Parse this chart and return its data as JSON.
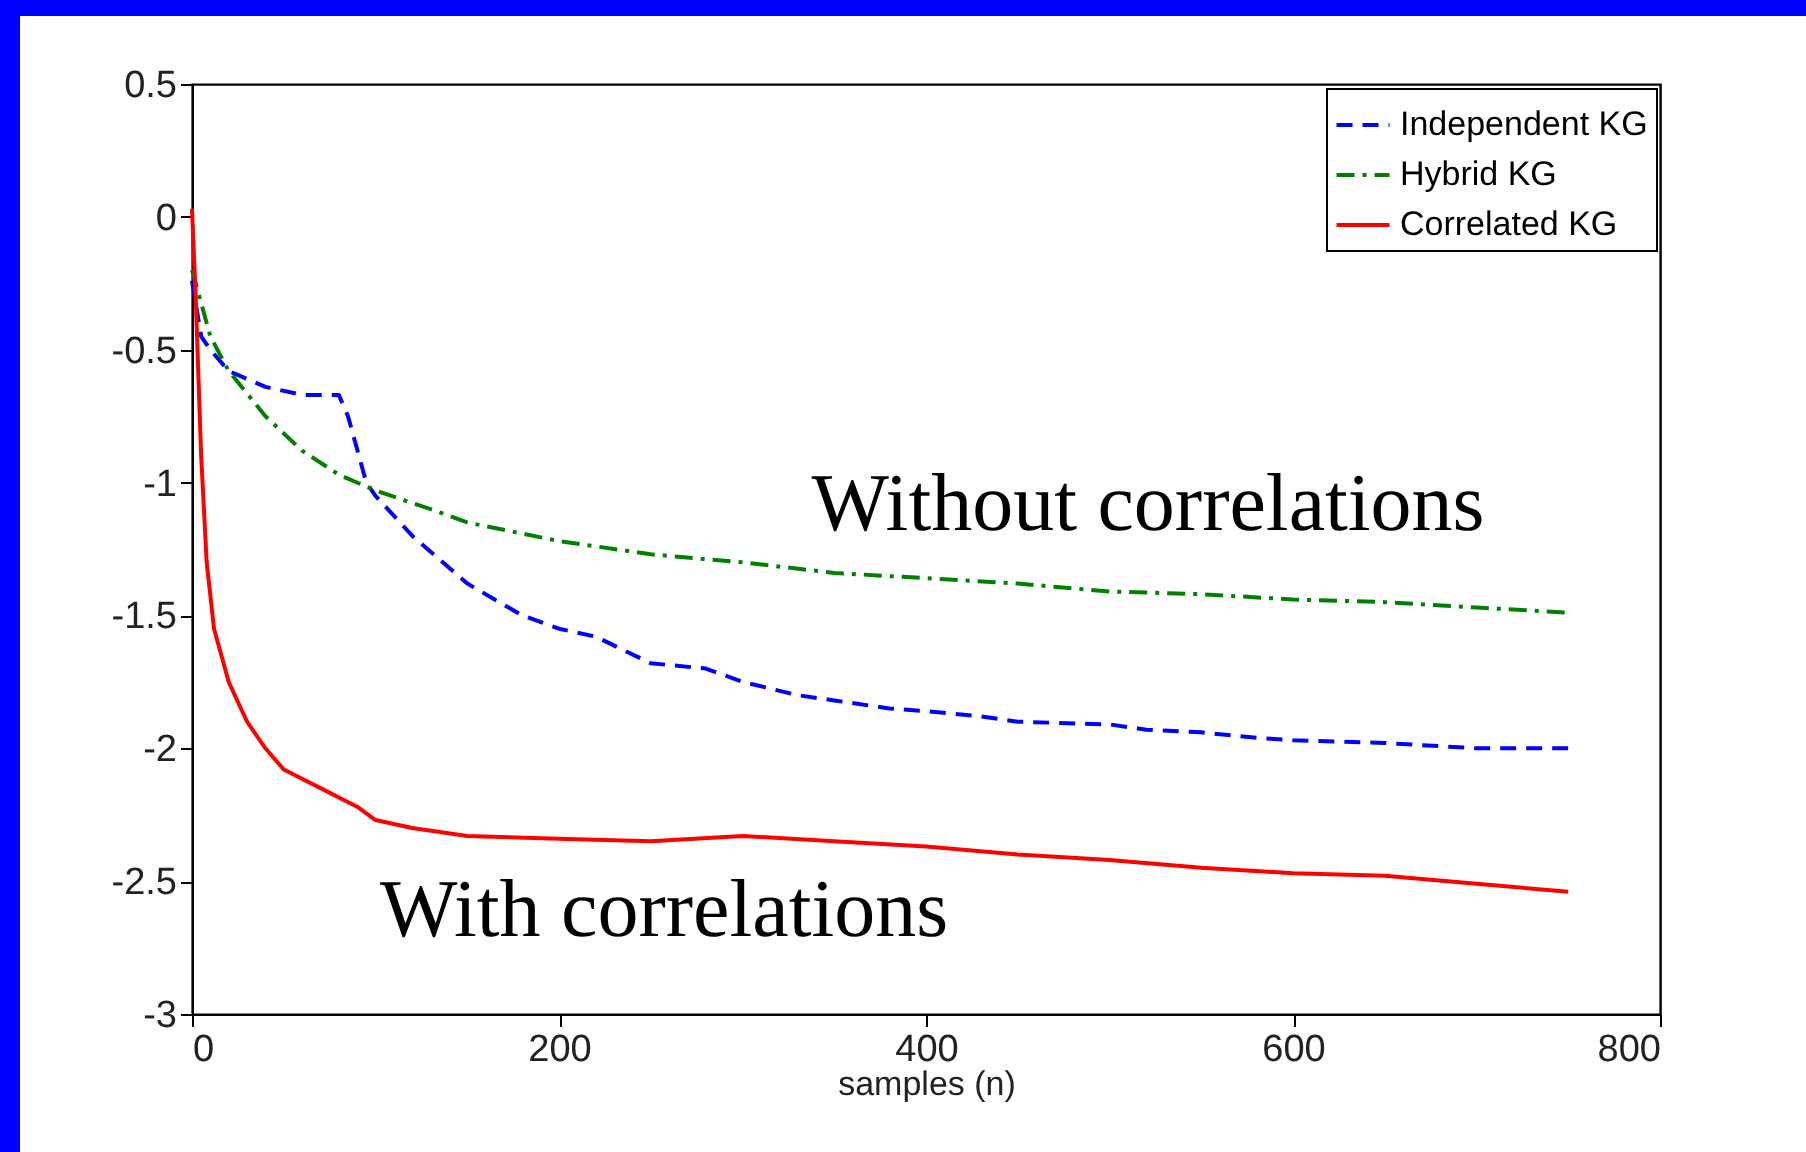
{
  "chart_data": {
    "type": "line",
    "xlabel": "samples (n)",
    "xlim": [
      0,
      800
    ],
    "xticks": [
      0,
      200,
      400,
      600,
      800
    ],
    "ylim": [
      -3,
      0.5
    ],
    "yticks": [
      -3,
      -2.5,
      -2,
      -1.5,
      -1,
      -0.5,
      0,
      0.5
    ],
    "grid": false,
    "legend": "top right",
    "marker": "none",
    "annotations": [
      "Without correlations",
      "With correlations"
    ],
    "series": [
      {
        "name": "Independent KG",
        "color": "#0000ff",
        "line_style": "dashed",
        "x": [
          0,
          5,
          10,
          20,
          40,
          60,
          80,
          85,
          95,
          100,
          120,
          150,
          180,
          200,
          220,
          250,
          280,
          300,
          330,
          350,
          380,
          400,
          430,
          450,
          500,
          520,
          550,
          580,
          600,
          650,
          700,
          750
        ],
        "values": [
          -0.24,
          -0.45,
          -0.5,
          -0.58,
          -0.64,
          -0.67,
          -0.67,
          -0.75,
          -1.0,
          -1.05,
          -1.2,
          -1.38,
          -1.5,
          -1.55,
          -1.58,
          -1.68,
          -1.7,
          -1.75,
          -1.8,
          -1.82,
          -1.85,
          -1.86,
          -1.88,
          -1.9,
          -1.91,
          -1.93,
          -1.94,
          -1.96,
          -1.97,
          -1.98,
          -2.0,
          -2.0
        ]
      },
      {
        "name": "Hybrid KG",
        "color": "#008000",
        "line_style": "dashdot",
        "x": [
          0,
          10,
          20,
          40,
          60,
          80,
          100,
          130,
          150,
          200,
          250,
          300,
          350,
          400,
          450,
          500,
          550,
          600,
          650,
          700,
          750
        ],
        "values": [
          -0.2,
          -0.45,
          -0.58,
          -0.75,
          -0.88,
          -0.97,
          -1.03,
          -1.1,
          -1.15,
          -1.22,
          -1.27,
          -1.3,
          -1.34,
          -1.36,
          -1.38,
          -1.41,
          -1.42,
          -1.44,
          -1.45,
          -1.47,
          -1.49
        ]
      },
      {
        "name": "Correlated KG",
        "color": "#ff0000",
        "line_style": "solid",
        "x": [
          0,
          2,
          5,
          8,
          12,
          20,
          30,
          40,
          50,
          70,
          90,
          100,
          120,
          150,
          200,
          250,
          300,
          350,
          400,
          450,
          500,
          550,
          600,
          650,
          700,
          750
        ],
        "values": [
          0.03,
          -0.3,
          -0.9,
          -1.3,
          -1.55,
          -1.75,
          -1.9,
          -2.0,
          -2.08,
          -2.15,
          -2.22,
          -2.27,
          -2.3,
          -2.33,
          -2.34,
          -2.35,
          -2.33,
          -2.35,
          -2.37,
          -2.4,
          -2.42,
          -2.45,
          -2.47,
          -2.48,
          -2.51,
          -2.54
        ]
      }
    ]
  }
}
